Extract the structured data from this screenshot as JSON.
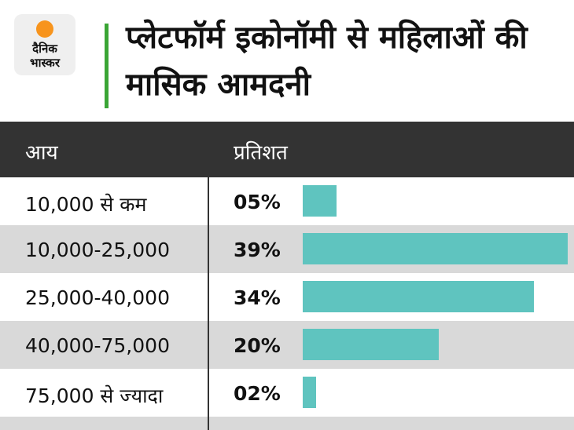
{
  "logo": {
    "line1": "दैनिक",
    "line2": "भास्कर"
  },
  "chart_data": {
    "type": "bar",
    "orientation": "horizontal",
    "title": "प्लेटफॉर्म इकोनॉमी से महिलाओं की मासिक आमदनी",
    "columns": [
      "आय",
      "प्रतिशत"
    ],
    "categories": [
      "10,000 से कम",
      "10,000-25,000",
      "25,000-40,000",
      "40,000-75,000",
      "75,000 से ज्यादा"
    ],
    "values": [
      5,
      39,
      34,
      20,
      2
    ],
    "value_labels": [
      "05%",
      "39%",
      "34%",
      "20%",
      "02%"
    ],
    "color": "#5fc4bf"
  }
}
